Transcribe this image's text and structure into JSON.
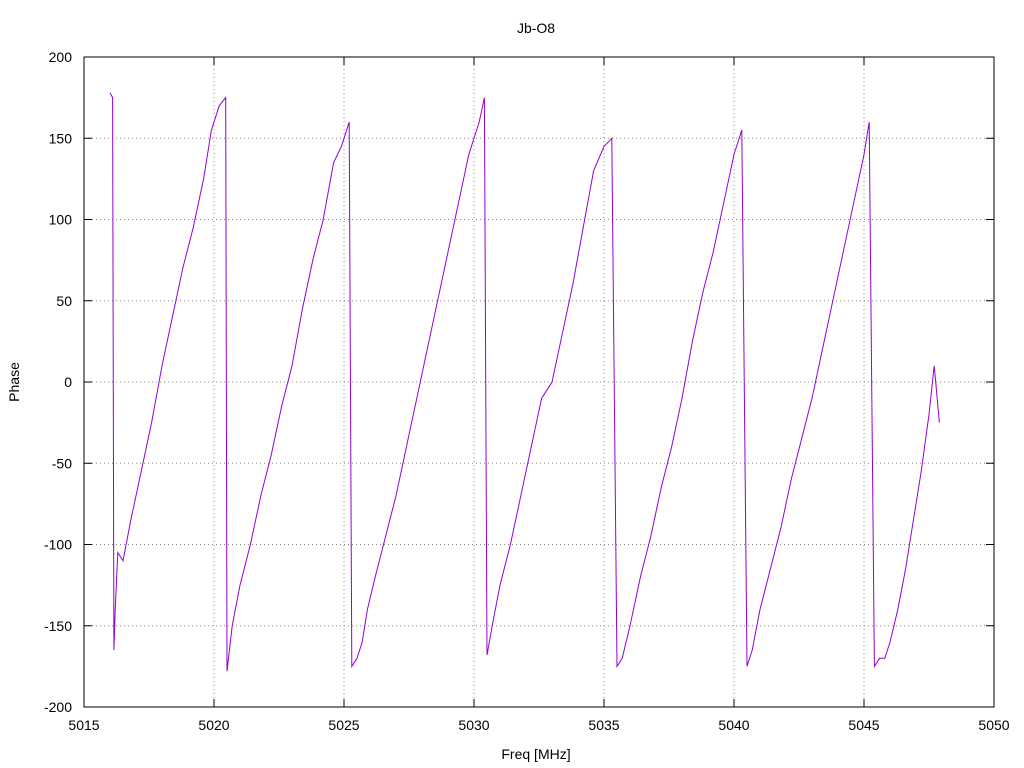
{
  "chart_data": {
    "type": "line",
    "title": "Jb-O8",
    "xlabel": "Freq [MHz]",
    "ylabel": "Phase",
    "xlim": [
      5015,
      5050
    ],
    "ylim": [
      -200,
      200
    ],
    "xticks": [
      5015,
      5020,
      5025,
      5030,
      5035,
      5040,
      5045,
      5050
    ],
    "yticks": [
      -200,
      -150,
      -100,
      -50,
      0,
      50,
      100,
      150,
      200
    ],
    "grid": true,
    "line_color": "#9400d3",
    "series": [
      {
        "x": [
          5016.0,
          5016.1,
          5016.15,
          5016.2,
          5016.3,
          5016.5,
          5016.8,
          5017.2,
          5017.6,
          5018.0,
          5018.4,
          5018.8,
          5019.2,
          5019.6,
          5019.9,
          5020.2,
          5020.45,
          5020.5,
          5020.7,
          5021.0,
          5021.4,
          5021.8,
          5022.2,
          5022.6,
          5023.0,
          5023.4,
          5023.8,
          5024.2,
          5024.6,
          5024.9,
          5025.2,
          5025.3,
          5025.5,
          5025.7,
          5025.9,
          5026.2,
          5026.6,
          5027.0,
          5027.4,
          5027.8,
          5028.2,
          5028.6,
          5029.0,
          5029.4,
          5029.8,
          5030.2,
          5030.4,
          5030.5,
          5030.7,
          5031.0,
          5031.4,
          5031.8,
          5032.2,
          5032.6,
          5033.0,
          5033.4,
          5033.8,
          5034.2,
          5034.6,
          5035.0,
          5035.3,
          5035.5,
          5035.7,
          5036.0,
          5036.4,
          5036.8,
          5037.2,
          5037.6,
          5038.0,
          5038.4,
          5038.8,
          5039.2,
          5039.6,
          5040.0,
          5040.3,
          5040.5,
          5040.7,
          5041.0,
          5041.4,
          5041.8,
          5042.2,
          5042.6,
          5043.0,
          5043.4,
          5043.8,
          5044.2,
          5044.6,
          5045.0,
          5045.2,
          5045.4,
          5045.6,
          5045.8,
          5046.0,
          5046.3,
          5046.6,
          5046.9,
          5047.2,
          5047.5,
          5047.7,
          5047.9
        ],
        "y": [
          178,
          175,
          -165,
          -140,
          -105,
          -110,
          -85,
          -55,
          -25,
          10,
          40,
          70,
          95,
          125,
          155,
          170,
          175,
          -178,
          -150,
          -125,
          -100,
          -70,
          -45,
          -15,
          10,
          45,
          75,
          100,
          135,
          145,
          160,
          -175,
          -170,
          -160,
          -140,
          -120,
          -95,
          -70,
          -40,
          -10,
          20,
          50,
          80,
          110,
          140,
          160,
          175,
          -168,
          -150,
          -125,
          -100,
          -70,
          -40,
          -10,
          0,
          30,
          60,
          95,
          130,
          145,
          150,
          -175,
          -170,
          -150,
          -120,
          -95,
          -65,
          -40,
          -10,
          25,
          55,
          80,
          110,
          140,
          155,
          -175,
          -165,
          -140,
          -115,
          -90,
          -60,
          -35,
          -10,
          20,
          50,
          80,
          110,
          140,
          160,
          -175,
          -170,
          -170,
          -160,
          -140,
          -115,
          -85,
          -55,
          -20,
          10,
          -25
        ]
      }
    ]
  }
}
